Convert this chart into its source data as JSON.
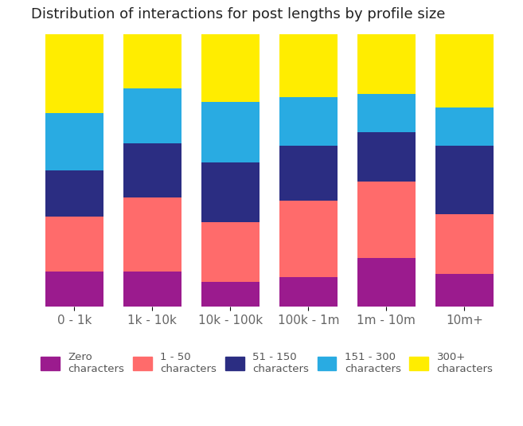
{
  "title": "Distribution of interactions for post lengths by profile size",
  "categories": [
    "0 - 1k",
    "1k - 10k",
    "10k - 100k",
    "100k - 1m",
    "1m - 10m",
    "10m+"
  ],
  "segments": {
    "Zero characters": [
      0.13,
      0.13,
      0.09,
      0.11,
      0.18,
      0.12
    ],
    "1 - 50 characters": [
      0.2,
      0.27,
      0.22,
      0.28,
      0.28,
      0.22
    ],
    "51 - 150 characters": [
      0.17,
      0.2,
      0.22,
      0.2,
      0.18,
      0.25
    ],
    "151 - 300 characters": [
      0.21,
      0.2,
      0.22,
      0.18,
      0.14,
      0.14
    ],
    "300+ characters": [
      0.29,
      0.2,
      0.25,
      0.23,
      0.22,
      0.27
    ]
  },
  "colors": {
    "Zero characters": "#9B1B8E",
    "1 - 50 characters": "#FF6B6B",
    "51 - 150 characters": "#2B2D82",
    "151 - 300 characters": "#29ABE2",
    "300+ characters": "#FFED00"
  },
  "legend_labels": [
    "Zero\ncharacters",
    "1 - 50\ncharacters",
    "51 - 150\ncharacters",
    "151 - 300\ncharacters",
    "300+\ncharacters"
  ],
  "background_color": "#FFFFFF",
  "bar_width": 0.75,
  "title_fontsize": 13,
  "tick_fontsize": 11,
  "legend_fontsize": 9.5
}
